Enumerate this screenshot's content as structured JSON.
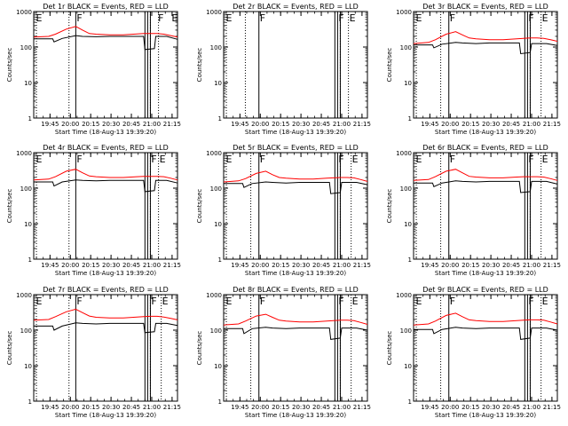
{
  "figure": {
    "background": "#ffffff",
    "colors": {
      "axes": "#000000",
      "events": "#000000",
      "lld": "#ff0000"
    }
  },
  "chart_data": [
    {
      "type": "line",
      "panel": "det1r",
      "title": "Det 1r BLACK = Events, RED = LLD",
      "xlabel": "Start Time (18-Aug-13 19:39:20)",
      "ylabel": "Counts/sec",
      "xticks": [
        "19:45",
        "20:00",
        "20:15",
        "20:30",
        "20:45",
        "21:00",
        "21:15"
      ],
      "xlim_minutes": [
        -6,
        100
      ],
      "ylim": [
        1,
        1000
      ],
      "yscale": "log",
      "yticks": [
        "1",
        "10",
        "100",
        "1000"
      ],
      "markers": [
        {
          "label": "E",
          "x": -5
        },
        {
          "label": "F",
          "x": 25
        },
        {
          "label": "F",
          "x": 85
        },
        {
          "label": "E",
          "x": 95
        }
      ],
      "solid_lines": [
        25,
        76,
        78,
        80
      ],
      "dotted_lines": [
        -4,
        20,
        80,
        86
      ],
      "series": [
        {
          "color": "#000000",
          "x": [
            -6,
            8,
            9,
            15,
            25,
            30,
            40,
            50,
            60,
            75,
            76,
            83,
            84,
            92,
            100
          ],
          "y": [
            170,
            170,
            140,
            175,
            210,
            200,
            195,
            200,
            200,
            200,
            85,
            90,
            200,
            200,
            165
          ]
        },
        {
          "color": "#ff0000",
          "x": [
            -6,
            5,
            10,
            18,
            25,
            30,
            35,
            40,
            50,
            60,
            70,
            75,
            80,
            85,
            90,
            95,
            100
          ],
          "y": [
            190,
            200,
            230,
            320,
            380,
            300,
            240,
            230,
            220,
            220,
            235,
            240,
            240,
            240,
            230,
            210,
            190
          ]
        }
      ]
    },
    {
      "type": "line",
      "panel": "det2r",
      "title": "Det 2r BLACK = Events, RED = LLD",
      "xlabel": "Start Time (18-Aug-13 19:39:20)",
      "ylabel": "Counts/sec",
      "xticks": [
        "19:45",
        "20:00",
        "20:15",
        "20:30",
        "20:45",
        "21:00",
        "21:15"
      ],
      "xlim_minutes": [
        -6,
        100
      ],
      "ylim": [
        1,
        1000
      ],
      "yscale": "log",
      "yticks": [
        "1",
        "10",
        "100",
        "1000"
      ],
      "markers": [
        {
          "label": "E",
          "x": -5
        },
        {
          "label": "F",
          "x": 20
        },
        {
          "label": "F",
          "x": 78
        },
        {
          "label": "E",
          "x": 86
        }
      ],
      "solid_lines": [
        20,
        76,
        78,
        80
      ],
      "dotted_lines": [
        -4,
        10,
        80,
        86
      ],
      "series": []
    },
    {
      "type": "line",
      "panel": "det3r",
      "title": "Det 3r BLACK = Events, RED = LLD",
      "xlabel": "Start Time (18-Aug-13 19:39:20)",
      "ylabel": "Counts/sec",
      "xticks": [
        "19:45",
        "20:00",
        "20:15",
        "20:30",
        "20:45",
        "21:00",
        "21:15"
      ],
      "xlim_minutes": [
        -6,
        100
      ],
      "ylim": [
        1,
        1000
      ],
      "yscale": "log",
      "yticks": [
        "1",
        "10",
        "100",
        "1000"
      ],
      "markers": [
        {
          "label": "E",
          "x": -5
        },
        {
          "label": "F",
          "x": 20
        },
        {
          "label": "F",
          "x": 78
        },
        {
          "label": "E",
          "x": 88
        }
      ],
      "solid_lines": [
        20,
        76,
        78,
        80
      ],
      "dotted_lines": [
        -4,
        14,
        80,
        88
      ],
      "series": [
        {
          "color": "#000000",
          "x": [
            -6,
            8,
            9,
            15,
            25,
            30,
            40,
            50,
            60,
            72,
            73,
            80,
            81,
            92,
            100
          ],
          "y": [
            115,
            115,
            95,
            120,
            135,
            130,
            125,
            130,
            130,
            130,
            65,
            70,
            125,
            125,
            110
          ]
        },
        {
          "color": "#ff0000",
          "x": [
            -6,
            5,
            10,
            18,
            25,
            30,
            35,
            40,
            50,
            60,
            70,
            75,
            80,
            85,
            90,
            95,
            100
          ],
          "y": [
            125,
            135,
            160,
            230,
            270,
            220,
            180,
            170,
            160,
            160,
            170,
            175,
            180,
            180,
            175,
            160,
            145
          ]
        }
      ]
    },
    {
      "type": "line",
      "panel": "det4r",
      "title": "Det 4r BLACK = Events, RED = LLD",
      "xlabel": "Start Time (18-Aug-13 19:39:20)",
      "ylabel": "Counts/sec",
      "xticks": [
        "19:45",
        "20:00",
        "20:15",
        "20:30",
        "20:45",
        "21:00",
        "21:15"
      ],
      "xlim_minutes": [
        -6,
        100
      ],
      "ylim": [
        1,
        1000
      ],
      "yscale": "log",
      "yticks": [
        "1",
        "10",
        "100",
        "1000"
      ],
      "markers": [
        {
          "label": "E",
          "x": -5
        },
        {
          "label": "F",
          "x": 25
        },
        {
          "label": "F",
          "x": 80
        },
        {
          "label": "E",
          "x": 86
        }
      ],
      "solid_lines": [
        25,
        76,
        78,
        80
      ],
      "dotted_lines": [
        -4,
        20,
        80,
        86
      ],
      "series": [
        {
          "color": "#000000",
          "x": [
            -6,
            8,
            9,
            15,
            25,
            30,
            40,
            50,
            60,
            75,
            76,
            83,
            84,
            92,
            100
          ],
          "y": [
            150,
            150,
            115,
            150,
            170,
            165,
            160,
            165,
            165,
            165,
            80,
            85,
            165,
            165,
            140
          ]
        },
        {
          "color": "#ff0000",
          "x": [
            -6,
            5,
            10,
            18,
            25,
            30,
            35,
            40,
            50,
            60,
            70,
            75,
            80,
            85,
            90,
            95,
            100
          ],
          "y": [
            170,
            180,
            210,
            300,
            340,
            270,
            220,
            210,
            200,
            200,
            210,
            215,
            215,
            215,
            210,
            190,
            170
          ]
        }
      ]
    },
    {
      "type": "line",
      "panel": "det5r",
      "title": "Det 5r BLACK = Events, RED = LLD",
      "xlabel": "Start Time (18-Aug-13 19:39:20)",
      "ylabel": "Counts/sec",
      "xticks": [
        "19:45",
        "20:00",
        "20:15",
        "20:30",
        "20:45",
        "21:00",
        "21:15"
      ],
      "xlim_minutes": [
        -6,
        100
      ],
      "ylim": [
        1,
        1000
      ],
      "yscale": "log",
      "yticks": [
        "1",
        "10",
        "100",
        "1000"
      ],
      "markers": [
        {
          "label": "E",
          "x": -5
        },
        {
          "label": "F",
          "x": 20
        },
        {
          "label": "F",
          "x": 78
        },
        {
          "label": "E",
          "x": 88
        }
      ],
      "solid_lines": [
        20,
        76,
        78,
        80
      ],
      "dotted_lines": [
        -4,
        14,
        80,
        88
      ],
      "series": [
        {
          "color": "#000000",
          "x": [
            -6,
            8,
            9,
            15,
            25,
            30,
            40,
            50,
            60,
            72,
            73,
            80,
            81,
            92,
            100
          ],
          "y": [
            135,
            135,
            105,
            135,
            150,
            145,
            140,
            145,
            145,
            145,
            70,
            75,
            145,
            145,
            125
          ]
        },
        {
          "color": "#ff0000",
          "x": [
            -6,
            5,
            10,
            18,
            25,
            30,
            35,
            40,
            50,
            60,
            70,
            75,
            80,
            85,
            90,
            95,
            100
          ],
          "y": [
            150,
            160,
            185,
            260,
            300,
            240,
            200,
            190,
            180,
            180,
            190,
            195,
            200,
            200,
            195,
            175,
            155
          ]
        }
      ]
    },
    {
      "type": "line",
      "panel": "det6r",
      "title": "Det 6r BLACK = Events, RED = LLD",
      "xlabel": "Start Time (18-Aug-13 19:39:20)",
      "ylabel": "Counts/sec",
      "xticks": [
        "19:45",
        "20:00",
        "20:15",
        "20:30",
        "20:45",
        "21:00",
        "21:15"
      ],
      "xlim_minutes": [
        -6,
        100
      ],
      "ylim": [
        1,
        1000
      ],
      "yscale": "log",
      "yticks": [
        "1",
        "10",
        "100",
        "1000"
      ],
      "markers": [
        {
          "label": "E",
          "x": -5
        },
        {
          "label": "F",
          "x": 20
        },
        {
          "label": "F",
          "x": 78
        },
        {
          "label": "E",
          "x": 88
        }
      ],
      "solid_lines": [
        20,
        76,
        78,
        80
      ],
      "dotted_lines": [
        -4,
        14,
        80,
        88
      ],
      "series": [
        {
          "color": "#000000",
          "x": [
            -6,
            8,
            9,
            15,
            25,
            30,
            40,
            50,
            60,
            72,
            73,
            80,
            81,
            92,
            100
          ],
          "y": [
            140,
            140,
            110,
            140,
            160,
            155,
            150,
            155,
            155,
            155,
            75,
            80,
            155,
            155,
            130
          ]
        },
        {
          "color": "#ff0000",
          "x": [
            -6,
            5,
            10,
            18,
            25,
            30,
            35,
            40,
            50,
            60,
            70,
            75,
            80,
            85,
            90,
            95,
            100
          ],
          "y": [
            165,
            175,
            210,
            300,
            340,
            270,
            215,
            205,
            195,
            195,
            205,
            210,
            210,
            210,
            205,
            185,
            165
          ]
        }
      ]
    },
    {
      "type": "line",
      "panel": "det7r",
      "title": "Det 7r BLACK = Events, RED = LLD",
      "xlabel": "Start Time (18-Aug-13 19:39:20)",
      "ylabel": "Counts/sec",
      "xticks": [
        "19:45",
        "20:00",
        "20:15",
        "20:30",
        "20:45",
        "21:00",
        "21:15"
      ],
      "xlim_minutes": [
        -6,
        100
      ],
      "ylim": [
        1,
        1000
      ],
      "yscale": "log",
      "yticks": [
        "1",
        "10",
        "100",
        "1000"
      ],
      "markers": [
        {
          "label": "E",
          "x": -5
        },
        {
          "label": "F",
          "x": 25
        },
        {
          "label": "F",
          "x": 80
        },
        {
          "label": "E",
          "x": 88
        }
      ],
      "solid_lines": [
        25,
        76,
        78,
        80
      ],
      "dotted_lines": [
        -4,
        20,
        80,
        88
      ],
      "series": [
        {
          "color": "#000000",
          "x": [
            -6,
            8,
            9,
            15,
            25,
            30,
            40,
            50,
            60,
            75,
            76,
            83,
            84,
            92,
            100
          ],
          "y": [
            130,
            130,
            100,
            130,
            160,
            155,
            150,
            155,
            155,
            155,
            85,
            90,
            155,
            155,
            135
          ]
        },
        {
          "color": "#ff0000",
          "x": [
            -6,
            5,
            10,
            18,
            25,
            30,
            35,
            40,
            50,
            60,
            70,
            75,
            80,
            85,
            90,
            95,
            100
          ],
          "y": [
            190,
            200,
            240,
            330,
            390,
            310,
            250,
            230,
            220,
            220,
            235,
            240,
            245,
            245,
            235,
            215,
            195
          ]
        }
      ]
    },
    {
      "type": "line",
      "panel": "det8r",
      "title": "Det 8r BLACK = Events, RED = LLD",
      "xlabel": "Start Time (18-Aug-13 19:39:20)",
      "ylabel": "Counts/sec",
      "xticks": [
        "19:45",
        "20:00",
        "20:15",
        "20:30",
        "20:45",
        "21:00",
        "21:15"
      ],
      "xlim_minutes": [
        -6,
        100
      ],
      "ylim": [
        1,
        1000
      ],
      "yscale": "log",
      "yticks": [
        "1",
        "10",
        "100",
        "1000"
      ],
      "markers": [
        {
          "label": "E",
          "x": -5
        },
        {
          "label": "F",
          "x": 20
        },
        {
          "label": "F",
          "x": 78
        },
        {
          "label": "E",
          "x": 88
        }
      ],
      "solid_lines": [
        20,
        76,
        78,
        80
      ],
      "dotted_lines": [
        -4,
        14,
        80,
        88
      ],
      "series": [
        {
          "color": "#000000",
          "x": [
            -6,
            8,
            9,
            15,
            25,
            30,
            40,
            50,
            60,
            72,
            73,
            80,
            81,
            92,
            100
          ],
          "y": [
            110,
            110,
            80,
            110,
            120,
            115,
            110,
            115,
            115,
            115,
            55,
            60,
            115,
            115,
            100
          ]
        },
        {
          "color": "#ff0000",
          "x": [
            -6,
            5,
            10,
            18,
            25,
            30,
            35,
            40,
            50,
            60,
            70,
            75,
            80,
            85,
            90,
            95,
            100
          ],
          "y": [
            140,
            150,
            180,
            250,
            280,
            230,
            190,
            180,
            170,
            170,
            180,
            185,
            190,
            190,
            185,
            165,
            145
          ]
        }
      ]
    },
    {
      "type": "line",
      "panel": "det9r",
      "title": "Det 9r BLACK = Events, RED = LLD",
      "xlabel": "Start Time (18-Aug-13 19:39:20)",
      "ylabel": "Counts/sec",
      "xticks": [
        "19:45",
        "20:00",
        "20:15",
        "20:30",
        "20:45",
        "21:00",
        "21:15"
      ],
      "xlim_minutes": [
        -6,
        100
      ],
      "ylim": [
        1,
        1000
      ],
      "yscale": "log",
      "yticks": [
        "1",
        "10",
        "100",
        "1000"
      ],
      "markers": [
        {
          "label": "E",
          "x": -5
        },
        {
          "label": "F",
          "x": 20
        },
        {
          "label": "F",
          "x": 78
        },
        {
          "label": "E",
          "x": 88
        }
      ],
      "solid_lines": [
        20,
        76,
        78,
        80
      ],
      "dotted_lines": [
        -4,
        14,
        80,
        88
      ],
      "series": [
        {
          "color": "#000000",
          "x": [
            -6,
            8,
            9,
            15,
            25,
            30,
            40,
            50,
            60,
            72,
            73,
            80,
            81,
            92,
            100
          ],
          "y": [
            105,
            105,
            80,
            105,
            120,
            115,
            110,
            115,
            115,
            115,
            55,
            60,
            115,
            115,
            100
          ]
        },
        {
          "color": "#ff0000",
          "x": [
            -6,
            5,
            10,
            18,
            25,
            30,
            35,
            40,
            50,
            60,
            70,
            75,
            80,
            85,
            90,
            95,
            100
          ],
          "y": [
            140,
            150,
            180,
            260,
            300,
            240,
            195,
            185,
            175,
            175,
            185,
            190,
            195,
            195,
            190,
            170,
            150
          ]
        }
      ]
    }
  ]
}
